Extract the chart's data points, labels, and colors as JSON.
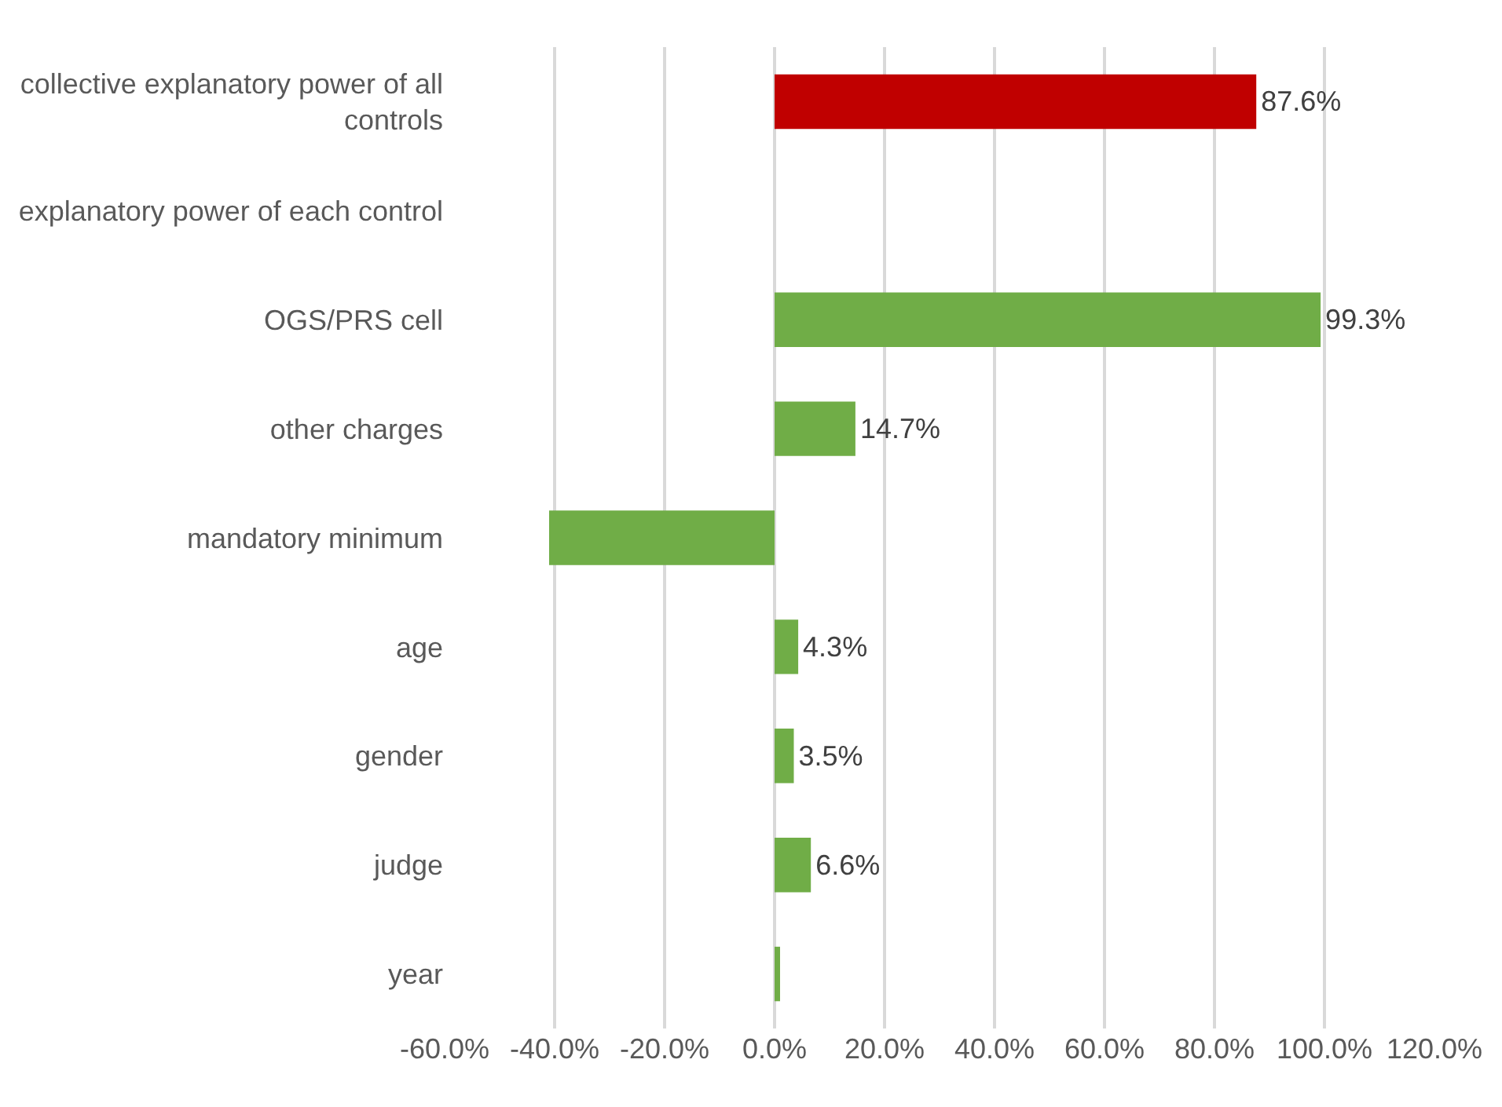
{
  "chart_data": {
    "type": "bar",
    "orientation": "horizontal",
    "categories": [
      "collective explanatory power of all controls",
      "explanatory power of each control",
      "OGS/PRS cell",
      "other charges",
      "mandatory minimum",
      "age",
      "gender",
      "judge",
      "year"
    ],
    "values": [
      87.6,
      null,
      99.3,
      14.7,
      -41,
      4.3,
      3.5,
      6.6,
      1
    ],
    "colors": [
      "#c00000",
      "#70ad47",
      "#70ad47",
      "#70ad47",
      "#70ad47",
      "#70ad47",
      "#70ad47",
      "#70ad47",
      "#70ad47"
    ],
    "value_labels": [
      "87.6%",
      null,
      "99.3%",
      "14.7%",
      null,
      "4.3%",
      "3.5%",
      "6.6%",
      null
    ],
    "xlim": [
      -60,
      120
    ],
    "xticks": [
      {
        "value": -60,
        "label": "-60.0%"
      },
      {
        "value": -40,
        "label": "-40.0%"
      },
      {
        "value": -20,
        "label": "-20.0%"
      },
      {
        "value": 0,
        "label": "0.0%"
      },
      {
        "value": 20,
        "label": "20.0%"
      },
      {
        "value": 40,
        "label": "40.0%"
      },
      {
        "value": 60,
        "label": "60.0%"
      },
      {
        "value": 80,
        "label": "80.0%"
      },
      {
        "value": 100,
        "label": "100.0%"
      },
      {
        "value": 120,
        "label": "120.0%"
      }
    ],
    "grid": "x"
  }
}
